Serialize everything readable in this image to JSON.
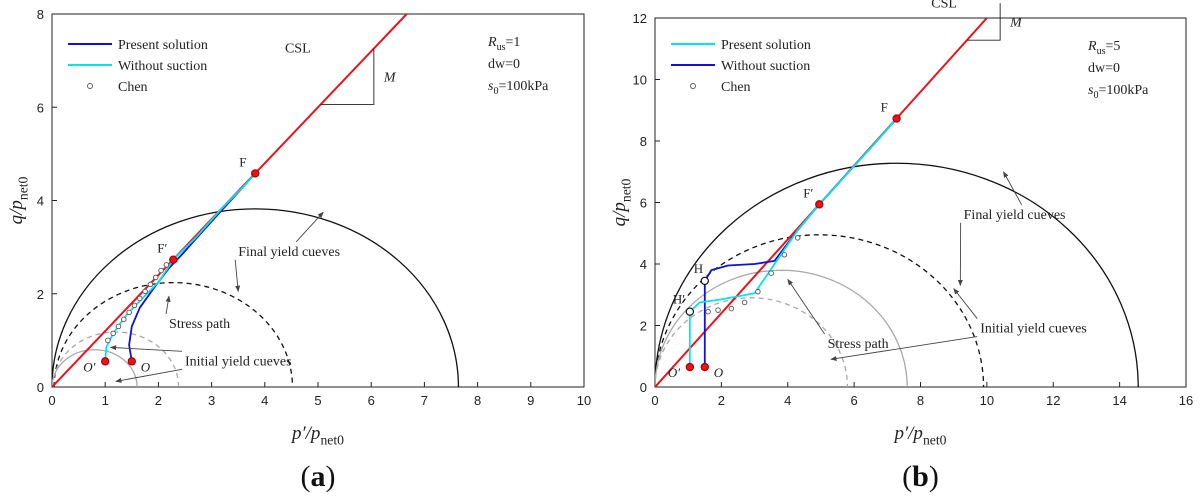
{
  "chart_data": [
    {
      "type": "line",
      "panel_label": {
        "open": "(",
        "letter": "a",
        "close": ")"
      },
      "xlabel": {
        "main": "p′/p",
        "sub": "net0"
      },
      "ylabel": {
        "main": "q/p",
        "sub": "net0"
      },
      "xlim": [
        0,
        10
      ],
      "ylim": [
        0,
        8
      ],
      "xticks": [
        "0",
        "1",
        "2",
        "3",
        "4",
        "5",
        "6",
        "7",
        "8",
        "9",
        "10"
      ],
      "yticks": [
        "0",
        "2",
        "4",
        "6",
        "8"
      ],
      "csl": {
        "label": "CSL",
        "slope_label": "M",
        "slope": 1.2
      },
      "params": [
        {
          "main": "R",
          "sub": "us",
          "rest": "=1"
        },
        {
          "main": "dw=0",
          "sub": "",
          "rest": ""
        },
        {
          "main": "s",
          "sub": "0",
          "rest": "=100kPa"
        }
      ],
      "legend": [
        {
          "label": "Present solution",
          "color": "#1010d8",
          "kind": "line"
        },
        {
          "label": "Without suction",
          "color": "#00e5ee",
          "kind": "line"
        },
        {
          "label": "Chen",
          "color": "#555555",
          "kind": "marker"
        }
      ],
      "series": [
        {
          "name": "Present solution",
          "color": "#1010d8",
          "points": [
            [
              1.5,
              0.55
            ],
            [
              1.45,
              0.9
            ],
            [
              1.5,
              1.3
            ],
            [
              1.65,
              1.7
            ],
            [
              1.9,
              2.1
            ],
            [
              2.2,
              2.55
            ],
            [
              2.45,
              2.85
            ],
            [
              2.8,
              3.3
            ],
            [
              3.2,
              3.8
            ],
            [
              3.6,
              4.3
            ],
            [
              3.82,
              4.58
            ]
          ]
        },
        {
          "name": "Without suction",
          "color": "#00e5ee",
          "points": [
            [
              1.0,
              0.55
            ],
            [
              1.02,
              0.85
            ],
            [
              1.15,
              1.15
            ],
            [
              1.4,
              1.55
            ],
            [
              1.7,
              1.9
            ],
            [
              2.0,
              2.25
            ],
            [
              2.28,
              2.73
            ],
            [
              2.7,
              3.2
            ],
            [
              3.2,
              3.84
            ],
            [
              3.6,
              4.3
            ],
            [
              3.82,
              4.58
            ]
          ]
        },
        {
          "name": "Chen",
          "color": "#555555",
          "kind": "markers",
          "points": [
            [
              1.05,
              1.0
            ],
            [
              1.15,
              1.15
            ],
            [
              1.25,
              1.3
            ],
            [
              1.35,
              1.45
            ],
            [
              1.45,
              1.6
            ],
            [
              1.55,
              1.75
            ],
            [
              1.65,
              1.9
            ],
            [
              1.75,
              2.05
            ],
            [
              1.85,
              2.2
            ],
            [
              1.95,
              2.35
            ],
            [
              2.05,
              2.5
            ],
            [
              2.15,
              2.62
            ]
          ]
        }
      ],
      "curves": [
        {
          "kind": "solid-black",
          "center": 3.82,
          "radius": 3.82
        },
        {
          "kind": "dashed-black",
          "center": 2.28,
          "radius": 2.24
        },
        {
          "kind": "solid-gray",
          "center": 0.8,
          "radius": 0.8
        },
        {
          "kind": "dashed-gray",
          "center": 1.2,
          "radius": 1.18
        }
      ],
      "points": [
        {
          "label": "F",
          "x": 3.82,
          "y": 4.58
        },
        {
          "label": "F′",
          "x": 2.28,
          "y": 2.73
        },
        {
          "label": "O",
          "x": 1.5,
          "y": 0.55
        },
        {
          "label": "O′",
          "x": 1.0,
          "y": 0.55
        }
      ],
      "annotations": [
        {
          "text": "Final yield cueves",
          "tx": 3.5,
          "ty": 2.9,
          "targets": [
            [
              5.1,
              3.75
            ],
            [
              3.5,
              2.05
            ]
          ]
        },
        {
          "text": "Stress path",
          "tx": 2.2,
          "ty": 1.35,
          "targets": [
            [
              2.2,
              1.95
            ]
          ]
        },
        {
          "text": "Initial yield cueves",
          "tx": 2.5,
          "ty": 0.55,
          "targets": [
            [
              1.1,
              0.85
            ],
            [
              1.2,
              0.12
            ]
          ]
        }
      ]
    },
    {
      "type": "line",
      "panel_label": {
        "open": "(",
        "letter": "b",
        "close": ")"
      },
      "xlabel": {
        "main": "p′/p",
        "sub": "net0"
      },
      "ylabel": {
        "main": "q/p",
        "sub": "net0"
      },
      "xlim": [
        0,
        16
      ],
      "ylim": [
        0,
        12
      ],
      "xticks": [
        "0",
        "2",
        "4",
        "6",
        "8",
        "10",
        "12",
        "14",
        "16"
      ],
      "yticks": [
        "0",
        "2",
        "4",
        "6",
        "8",
        "10",
        "12"
      ],
      "csl": {
        "label": "CSL",
        "slope_label": "M",
        "slope": 1.2
      },
      "params": [
        {
          "main": "R",
          "sub": "us",
          "rest": "=5"
        },
        {
          "main": "dw=0",
          "sub": "",
          "rest": ""
        },
        {
          "main": "s",
          "sub": "0",
          "rest": "=100kPa"
        }
      ],
      "legend": [
        {
          "label": "Present solution",
          "color": "#00e5ee",
          "kind": "line"
        },
        {
          "label": "Without suction",
          "color": "#1010d8",
          "kind": "line"
        },
        {
          "label": "Chen",
          "color": "#555555",
          "kind": "marker"
        }
      ],
      "series": [
        {
          "name": "Without suction",
          "color": "#1010d8",
          "points": [
            [
              1.5,
              0.65
            ],
            [
              1.5,
              3.45
            ],
            [
              1.7,
              3.8
            ],
            [
              2.2,
              3.95
            ],
            [
              3.0,
              4.0
            ],
            [
              3.6,
              4.1
            ],
            [
              4.3,
              5.1
            ],
            [
              4.95,
              5.94
            ],
            [
              5.8,
              6.95
            ],
            [
              6.6,
              7.9
            ],
            [
              7.28,
              8.73
            ]
          ]
        },
        {
          "name": "Present solution",
          "color": "#00e5ee",
          "points": [
            [
              1.05,
              0.65
            ],
            [
              1.05,
              2.45
            ],
            [
              1.35,
              2.75
            ],
            [
              2.0,
              2.85
            ],
            [
              3.0,
              3.05
            ],
            [
              3.6,
              4.0
            ],
            [
              4.3,
              5.1
            ],
            [
              4.95,
              5.94
            ],
            [
              5.8,
              6.95
            ],
            [
              6.6,
              7.9
            ],
            [
              7.28,
              8.73
            ]
          ]
        },
        {
          "name": "Chen",
          "color": "#555555",
          "kind": "markers",
          "points": [
            [
              1.6,
              2.45
            ],
            [
              1.9,
              2.5
            ],
            [
              2.3,
              2.55
            ],
            [
              2.7,
              2.75
            ],
            [
              3.1,
              3.1
            ],
            [
              3.5,
              3.7
            ],
            [
              3.9,
              4.3
            ],
            [
              4.3,
              4.85
            ]
          ]
        }
      ],
      "curves": [
        {
          "kind": "solid-black",
          "center": 7.28,
          "radius": 7.28
        },
        {
          "kind": "dashed-black",
          "center": 4.95,
          "radius": 4.95
        },
        {
          "kind": "solid-gray",
          "center": 3.8,
          "radius": 3.8
        },
        {
          "kind": "dashed-gray",
          "center": 2.9,
          "radius": 2.9
        }
      ],
      "points": [
        {
          "label": "F",
          "x": 7.28,
          "y": 8.73
        },
        {
          "label": "F′",
          "x": 4.95,
          "y": 5.94
        },
        {
          "label": "H",
          "x": 1.5,
          "y": 3.45
        },
        {
          "label": "H′",
          "x": 1.05,
          "y": 2.45
        },
        {
          "label": "O",
          "x": 1.5,
          "y": 0.65
        },
        {
          "label": "O′",
          "x": 1.05,
          "y": 0.65
        }
      ],
      "annotations": [
        {
          "text": "Final yield cueves",
          "tx": 9.3,
          "ty": 5.6,
          "targets": [
            [
              10.5,
              7.0
            ],
            [
              9.2,
              3.3
            ]
          ]
        },
        {
          "text": "Stress path",
          "tx": 5.2,
          "ty": 1.4,
          "targets": [
            [
              4.0,
              3.5
            ]
          ]
        },
        {
          "text": "Initial yield cueves",
          "tx": 9.8,
          "ty": 1.9,
          "targets": [
            [
              9.0,
              3.2
            ],
            [
              5.3,
              0.9
            ]
          ]
        }
      ]
    }
  ]
}
